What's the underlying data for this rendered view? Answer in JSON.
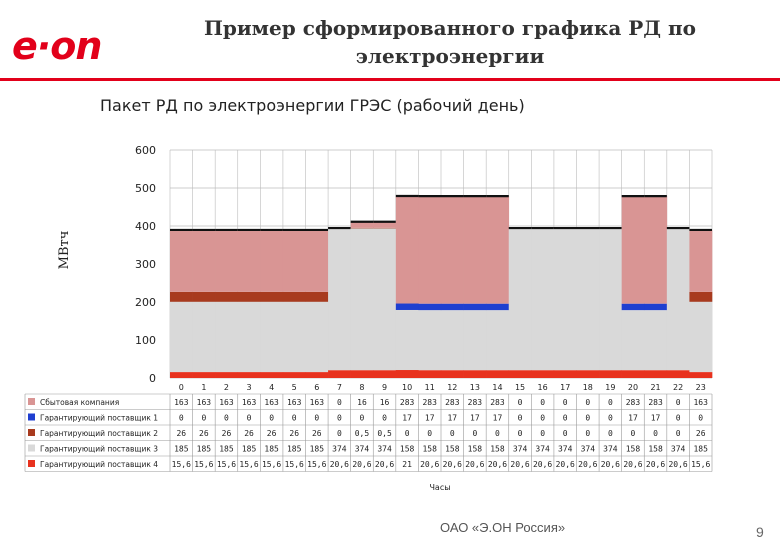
{
  "header": {
    "logo_text": "e·on",
    "title_line1": "Пример сформированного графика РД по",
    "title_line2": "электроэнергии"
  },
  "footer": {
    "company": "ОАО «Э.ОН Россия»",
    "page_number": "9"
  },
  "colors": {
    "brand": "#e2001a",
    "sbyt": "#d99594",
    "gp1": "#1f3fd0",
    "gp2": "#a83a1e",
    "gp3": "#d9d9d9",
    "gp4": "#e8321e"
  },
  "chart_data": {
    "type": "area",
    "stacked": true,
    "title": "Пакет РД по электроэнергии ГРЭС (рабочий день)",
    "xlabel": "Часы",
    "ylabel": "МВтч",
    "ylim": [
      0,
      600
    ],
    "yticks": [
      0,
      100,
      200,
      300,
      400,
      500,
      600
    ],
    "grid": true,
    "categories": [
      "0",
      "1",
      "2",
      "3",
      "4",
      "5",
      "6",
      "7",
      "8",
      "9",
      "10",
      "11",
      "12",
      "13",
      "14",
      "15",
      "16",
      "17",
      "18",
      "19",
      "20",
      "21",
      "22",
      "23"
    ],
    "series": [
      {
        "name": "Гарантирующий поставщик 4",
        "color": "#e8321e",
        "values": [
          "15,6",
          "15,6",
          "15,6",
          "15,6",
          "15,6",
          "15,6",
          "15,6",
          "20,6",
          "20,6",
          "20,6",
          "21",
          "20,6",
          "20,6",
          "20,6",
          "20,6",
          "20,6",
          "20,6",
          "20,6",
          "20,6",
          "20,6",
          "20,6",
          "20,6",
          "20,6",
          "15,6"
        ]
      },
      {
        "name": "Гарантирующий поставщик 3",
        "color": "#d9d9d9",
        "values": [
          "185",
          "185",
          "185",
          "185",
          "185",
          "185",
          "185",
          "374",
          "374",
          "374",
          "158",
          "158",
          "158",
          "158",
          "158",
          "374",
          "374",
          "374",
          "374",
          "374",
          "158",
          "158",
          "374",
          "185"
        ]
      },
      {
        "name": "Гарантирующий поставщик 2",
        "color": "#a83a1e",
        "values": [
          "26",
          "26",
          "26",
          "26",
          "26",
          "26",
          "26",
          "0",
          "0,5",
          "0,5",
          "0",
          "0",
          "0",
          "0",
          "0",
          "0",
          "0",
          "0",
          "0",
          "0",
          "0",
          "0",
          "0",
          "26"
        ]
      },
      {
        "name": "Гарантирующий поставщик 1",
        "color": "#1f3fd0",
        "values": [
          "0",
          "0",
          "0",
          "0",
          "0",
          "0",
          "0",
          "0",
          "0",
          "0",
          "17",
          "17",
          "17",
          "17",
          "17",
          "0",
          "0",
          "0",
          "0",
          "0",
          "17",
          "17",
          "0",
          "0"
        ]
      },
      {
        "name": "Сбытовая компания",
        "color": "#d99594",
        "values": [
          "163",
          "163",
          "163",
          "163",
          "163",
          "163",
          "163",
          "0",
          "16",
          "16",
          "283",
          "283",
          "283",
          "283",
          "283",
          "0",
          "0",
          "0",
          "0",
          "0",
          "283",
          "283",
          "0",
          "163"
        ]
      }
    ],
    "table_row_order": [
      "Сбытовая компания",
      "Гарантирующий поставщик 1",
      "Гарантирующий поставщик 2",
      "Гарантирующий поставщик 3",
      "Гарантирующий поставщик 4"
    ]
  }
}
